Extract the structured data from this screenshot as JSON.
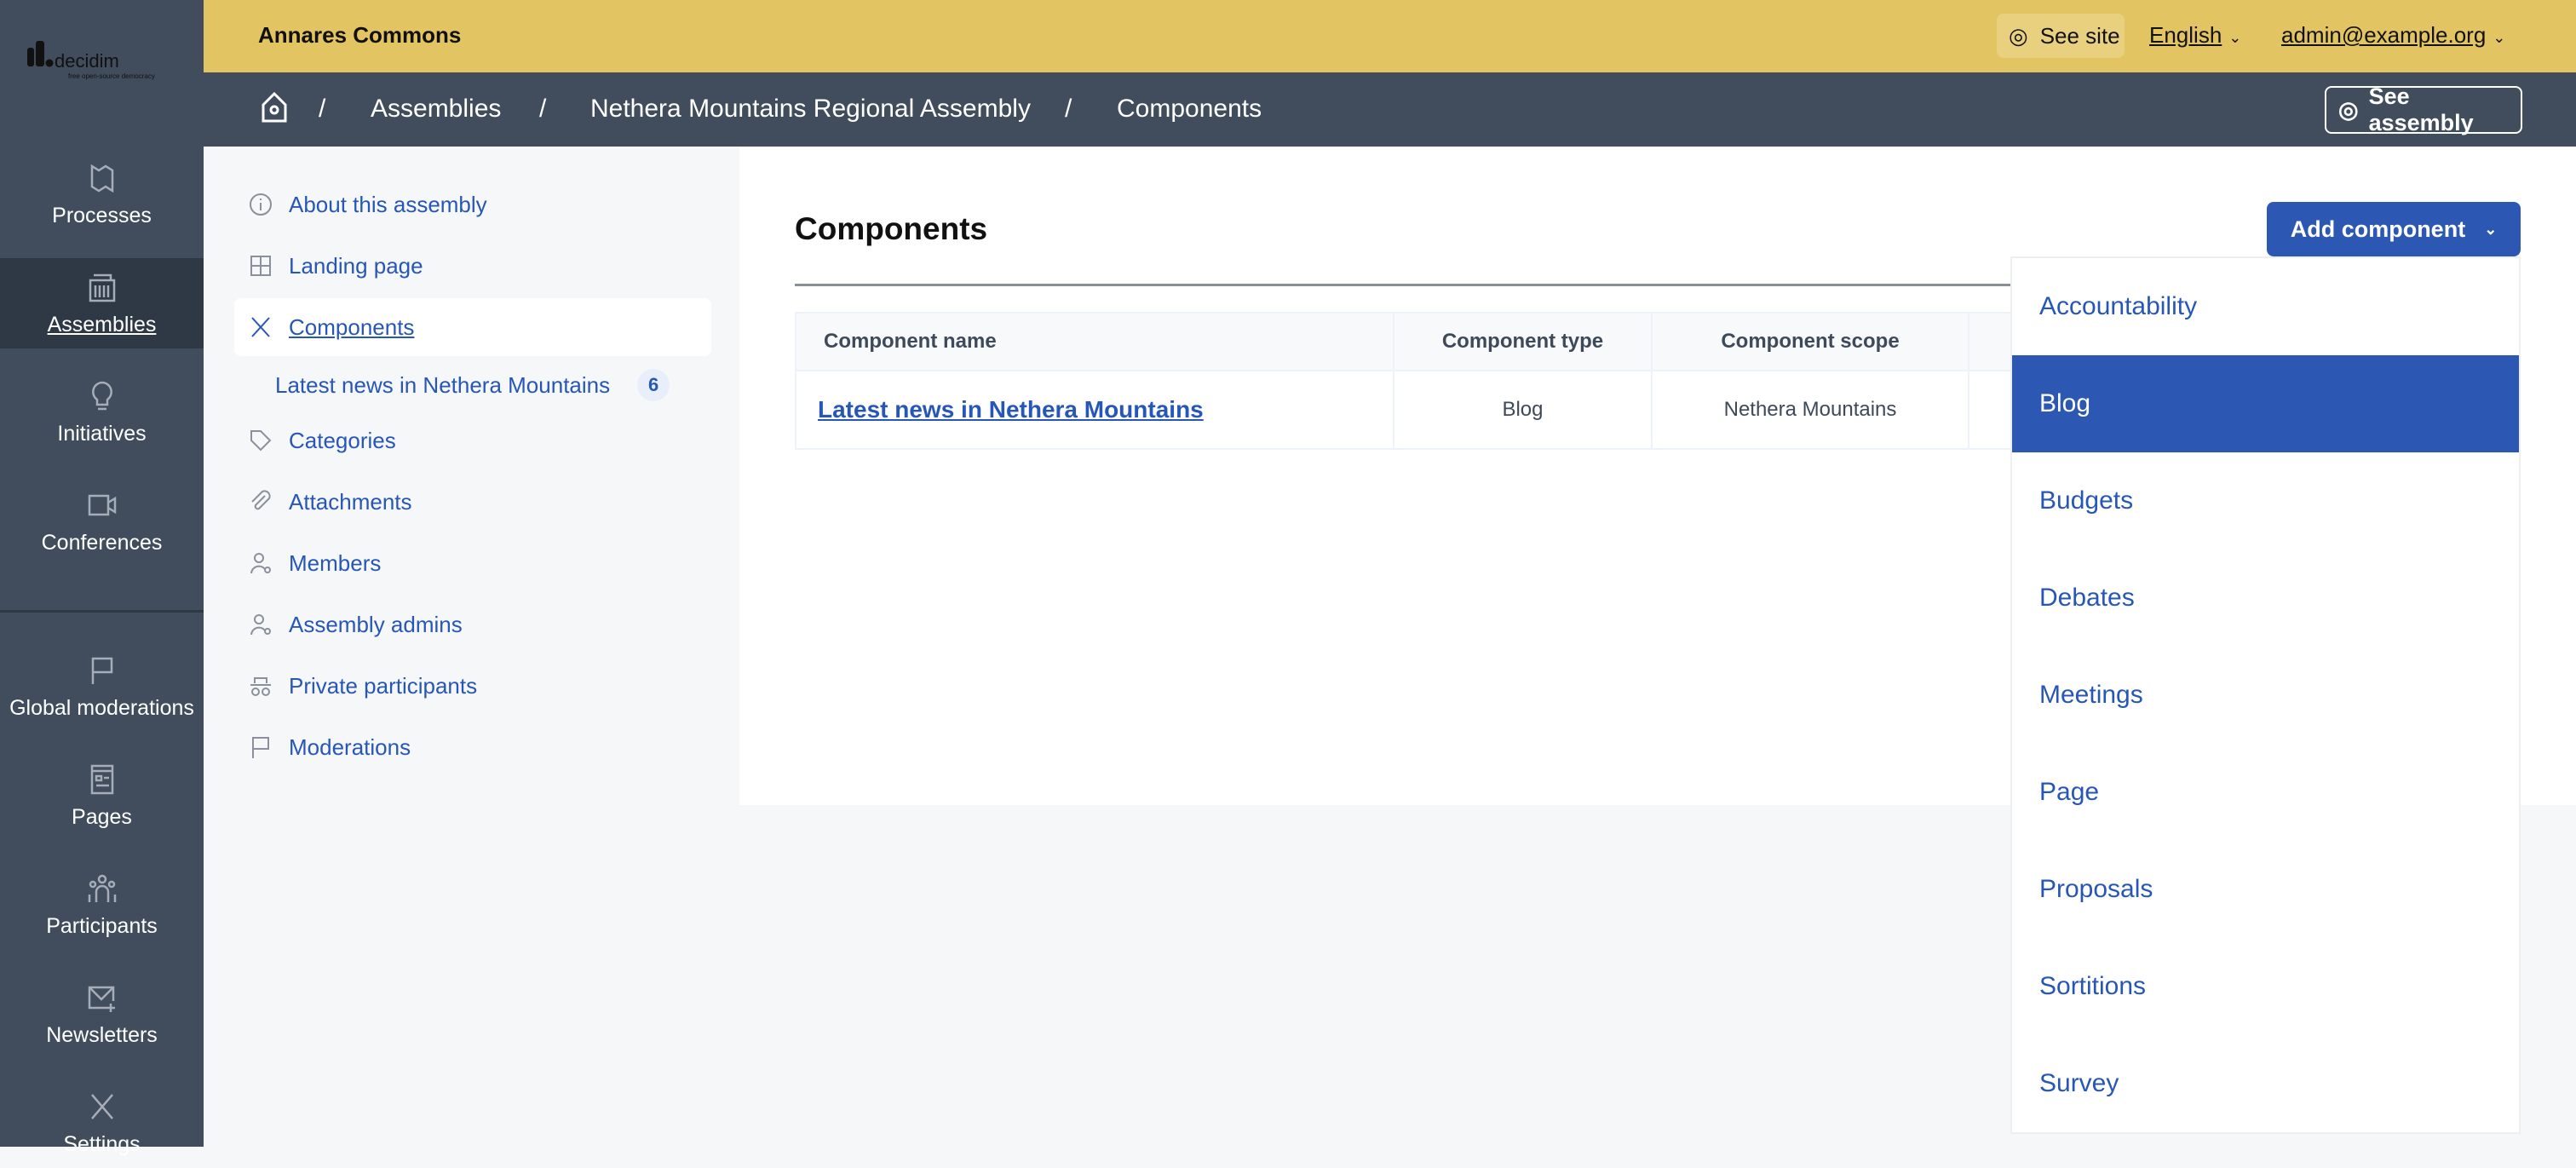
{
  "brand": {
    "logo_text": "decidim",
    "logo_tagline": "free open-source democracy"
  },
  "sidebar": {
    "items": [
      {
        "label": "Processes",
        "icon": "map-icon"
      },
      {
        "label": "Assemblies",
        "icon": "building-icon",
        "active": true
      },
      {
        "label": "Initiatives",
        "icon": "lightbulb-icon"
      },
      {
        "label": "Conferences",
        "icon": "video-icon"
      },
      {
        "label": "Global moderations",
        "icon": "flag-icon"
      },
      {
        "label": "Pages",
        "icon": "page-icon"
      },
      {
        "label": "Participants",
        "icon": "people-icon"
      },
      {
        "label": "Newsletters",
        "icon": "mail-add-icon"
      },
      {
        "label": "Settings",
        "icon": "tools-icon"
      }
    ]
  },
  "topbar": {
    "org_name": "Annares Commons",
    "see_site": "See site",
    "language": "English",
    "user": "admin@example.org"
  },
  "breadcrumb": {
    "items": [
      "Assemblies",
      "Nethera Mountains Regional Assembly",
      "Components"
    ],
    "see_assembly": "See assembly"
  },
  "subnav": {
    "items": [
      {
        "label": "About this assembly",
        "icon": "info-icon"
      },
      {
        "label": "Landing page",
        "icon": "layout-icon"
      },
      {
        "label": "Components",
        "icon": "tools-icon",
        "active": true
      },
      {
        "label": "Latest news in Nethera Mountains",
        "count": "6"
      },
      {
        "label": "Categories",
        "icon": "tag-icon"
      },
      {
        "label": "Attachments",
        "icon": "paperclip-icon"
      },
      {
        "label": "Members",
        "icon": "user-icon"
      },
      {
        "label": "Assembly admins",
        "icon": "user-gear-icon"
      },
      {
        "label": "Private participants",
        "icon": "spy-icon"
      },
      {
        "label": "Moderations",
        "icon": "flag-icon"
      }
    ]
  },
  "main": {
    "title": "Components",
    "add_component": "Add component",
    "table": {
      "headers": [
        "Component name",
        "Component type",
        "Component scope"
      ],
      "rows": [
        [
          "Latest news in Nethera Mountains",
          "Blog",
          "Nethera Mountains"
        ]
      ]
    }
  },
  "dropdown": {
    "options": [
      "Accountability",
      "Blog",
      "Budgets",
      "Debates",
      "Meetings",
      "Page",
      "Proposals",
      "Sortitions",
      "Survey"
    ],
    "selected": "Blog"
  },
  "colors": {
    "topbar": "#e3c463",
    "sidebar": "#414d5c",
    "accent": "#2c58b3"
  }
}
